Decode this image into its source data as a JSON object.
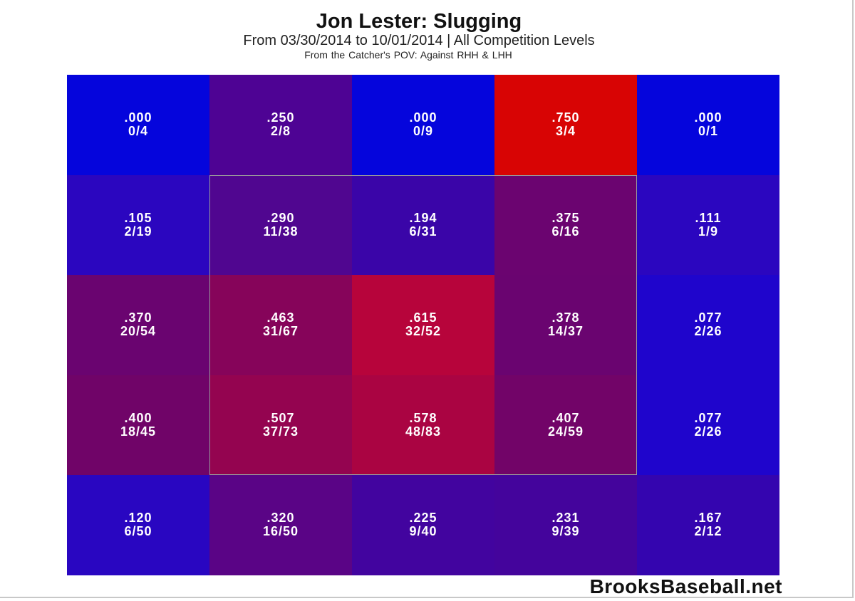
{
  "title": "Jon Lester: Slugging",
  "subtitle": "From 03/30/2014 to 10/01/2014 | All Competition Levels",
  "subtitle2": "From the Catcher's POV:   Against RHH & LHH",
  "brand": "BrooksBaseball.net",
  "chart_data": {
    "type": "heatmap",
    "title": "Jon Lester: Slugging",
    "metric": "Slugging",
    "rows": 5,
    "cols": 5,
    "strike_zone": {
      "rows": [
        1,
        3
      ],
      "cols": [
        1,
        3
      ]
    },
    "cells": [
      [
        {
          "value": ".000",
          "count": "0/4",
          "color": "#0505dc"
        },
        {
          "value": ".250",
          "count": "2/8",
          "color": "#4e0394"
        },
        {
          "value": ".000",
          "count": "0/9",
          "color": "#0505dc"
        },
        {
          "value": ".750",
          "count": "3/4",
          "color": "#d80404"
        },
        {
          "value": ".000",
          "count": "0/1",
          "color": "#0505dc"
        }
      ],
      [
        {
          "value": ".105",
          "count": "2/19",
          "color": "#2b06bf"
        },
        {
          "value": ".290",
          "count": "11/38",
          "color": "#500690"
        },
        {
          "value": ".194",
          "count": "6/31",
          "color": "#3a05a8"
        },
        {
          "value": ".375",
          "count": "6/16",
          "color": "#6b0470"
        },
        {
          "value": ".111",
          "count": "1/9",
          "color": "#2b06bf"
        }
      ],
      [
        {
          "value": ".370",
          "count": "20/54",
          "color": "#6a0470"
        },
        {
          "value": ".463",
          "count": "31/67",
          "color": "#86045a"
        },
        {
          "value": ".615",
          "count": "32/52",
          "color": "#b7043b"
        },
        {
          "value": ".378",
          "count": "14/37",
          "color": "#6a0470"
        },
        {
          "value": ".077",
          "count": "2/26",
          "color": "#1f05cc"
        }
      ],
      [
        {
          "value": ".400",
          "count": "18/45",
          "color": "#700468"
        },
        {
          "value": ".507",
          "count": "37/73",
          "color": "#940450"
        },
        {
          "value": ".578",
          "count": "48/83",
          "color": "#aa0442"
        },
        {
          "value": ".407",
          "count": "24/59",
          "color": "#720468"
        },
        {
          "value": ".077",
          "count": "2/26",
          "color": "#1f05cc"
        }
      ],
      [
        {
          "value": ".120",
          "count": "6/50",
          "color": "#2906c1"
        },
        {
          "value": ".320",
          "count": "16/50",
          "color": "#5a0486"
        },
        {
          "value": ".225",
          "count": "9/40",
          "color": "#42049f"
        },
        {
          "value": ".231",
          "count": "9/39",
          "color": "#44049c"
        },
        {
          "value": ".167",
          "count": "2/12",
          "color": "#3405af"
        }
      ]
    ]
  }
}
